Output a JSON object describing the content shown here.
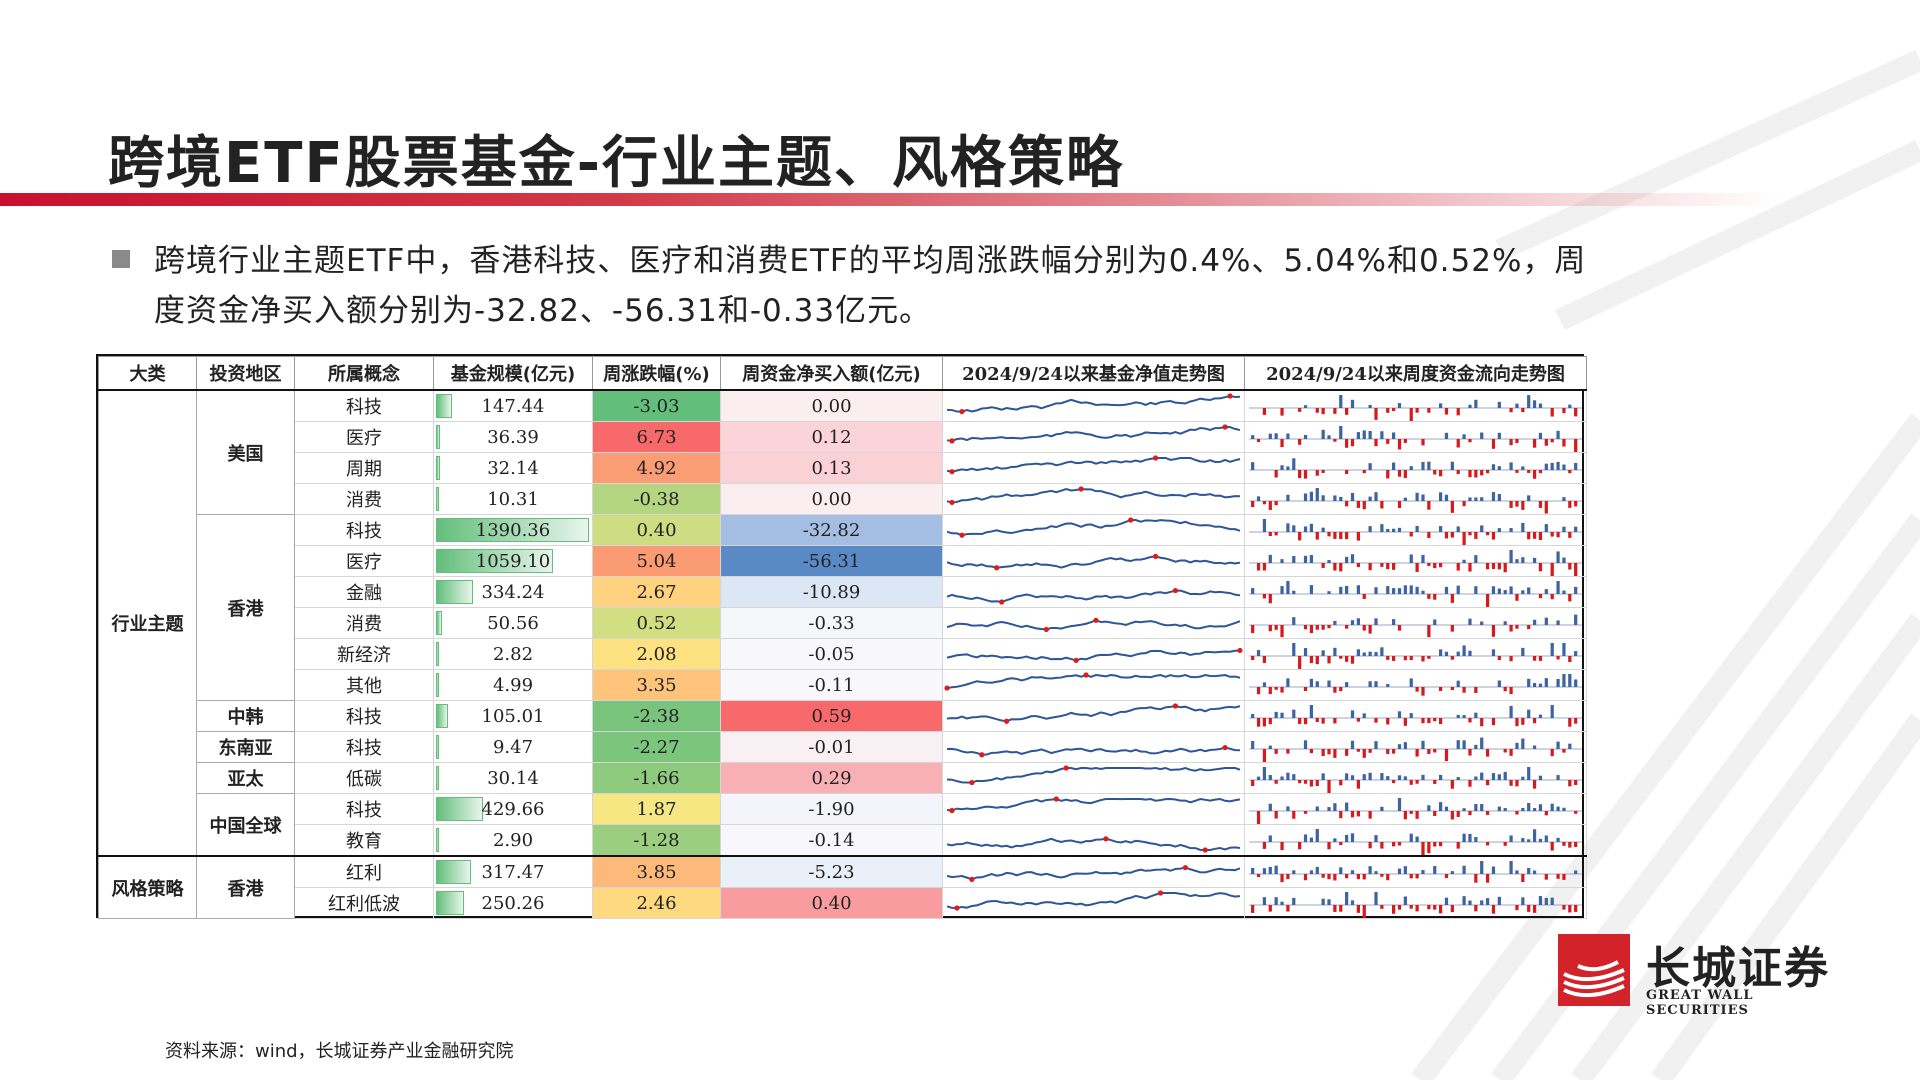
{
  "title": "跨境ETF股票基金-行业主题、风格策略",
  "bullet": "跨境行业主题ETF中，香港科技、医疗和消费ETF的平均周涨跌幅分别为0.4%、5.04%和0.52%，周度资金净买入额分别为-32.82、-56.31和-0.33亿元。",
  "table": {
    "headers": [
      "大类",
      "投资地区",
      "所属概念",
      "基金规模(亿元)",
      "周涨跌幅(%)",
      "周资金净买入额(亿元)",
      "2024/9/24以来基金净值走势图",
      "2024/9/24以来周度资金流向走势图"
    ],
    "groups": {
      "industry": "行业主题",
      "style": "风格策略",
      "us": "美国",
      "hk": "香港",
      "kr": "中韩",
      "sea": "东南亚",
      "ap": "亚太",
      "cn": "中国全球",
      "hk2": "香港"
    },
    "rows": [
      {
        "concept": "科技",
        "size": "147.44",
        "size_num": 147.44,
        "chg": "-3.03",
        "chg_bg": "#63be7b",
        "flow": "0.00",
        "flow_bg": "#fbeef0"
      },
      {
        "concept": "医疗",
        "size": "36.39",
        "size_num": 36.39,
        "chg": "6.73",
        "chg_bg": "#f8696b",
        "flow": "0.12",
        "flow_bg": "#fad4d8"
      },
      {
        "concept": "周期",
        "size": "32.14",
        "size_num": 32.14,
        "chg": "4.92",
        "chg_bg": "#fa9d75",
        "flow": "0.13",
        "flow_bg": "#fad2d6"
      },
      {
        "concept": "消费",
        "size": "10.31",
        "size_num": 10.31,
        "chg": "-0.38",
        "chg_bg": "#b5d680",
        "flow": "0.00",
        "flow_bg": "#fbeef0"
      },
      {
        "concept": "科技",
        "size": "1390.36",
        "size_num": 1390.36,
        "chg": "0.40",
        "chg_bg": "#cfdd82",
        "flow": "-32.82",
        "flow_bg": "#a4bde2"
      },
      {
        "concept": "医疗",
        "size": "1059.10",
        "size_num": 1059.1,
        "chg": "5.04",
        "chg_bg": "#fa9b74",
        "flow": "-56.31",
        "flow_bg": "#5a8ac6"
      },
      {
        "concept": "金融",
        "size": "334.24",
        "size_num": 334.24,
        "chg": "2.67",
        "chg_bg": "#fed27f",
        "flow": "-10.89",
        "flow_bg": "#dde6f4"
      },
      {
        "concept": "消费",
        "size": "50.56",
        "size_num": 50.56,
        "chg": "0.52",
        "chg_bg": "#d2de82",
        "flow": "-0.33",
        "flow_bg": "#f6f7fb"
      },
      {
        "concept": "新经济",
        "size": "2.82",
        "size_num": 2.82,
        "chg": "2.08",
        "chg_bg": "#fee282",
        "flow": "-0.05",
        "flow_bg": "#f8f8fc"
      },
      {
        "concept": "其他",
        "size": "4.99",
        "size_num": 4.99,
        "chg": "3.35",
        "chg_bg": "#fec47c",
        "flow": "-0.11",
        "flow_bg": "#f8f8fc"
      },
      {
        "concept": "科技",
        "size": "105.01",
        "size_num": 105.01,
        "chg": "-2.38",
        "chg_bg": "#78c47d",
        "flow": "0.59",
        "flow_bg": "#f8696b"
      },
      {
        "concept": "科技",
        "size": "9.47",
        "size_num": 9.47,
        "chg": "-2.27",
        "chg_bg": "#7bc57d",
        "flow": "-0.01",
        "flow_bg": "#f9f0f3"
      },
      {
        "concept": "低碳",
        "size": "30.14",
        "size_num": 30.14,
        "chg": "-1.66",
        "chg_bg": "#8ecb7e",
        "flow": "0.29",
        "flow_bg": "#f9b0b4"
      },
      {
        "concept": "科技",
        "size": "429.66",
        "size_num": 429.66,
        "chg": "1.87",
        "chg_bg": "#f6e783",
        "flow": "-1.90",
        "flow_bg": "#f4f5fa"
      },
      {
        "concept": "教育",
        "size": "2.90",
        "size_num": 2.9,
        "chg": "-1.28",
        "chg_bg": "#9bcf7f",
        "flow": "-0.14",
        "flow_bg": "#f8f8fc"
      },
      {
        "concept": "红利",
        "size": "317.47",
        "size_num": 317.47,
        "chg": "3.85",
        "chg_bg": "#fdb97a",
        "flow": "-5.23",
        "flow_bg": "#eaf0f8"
      },
      {
        "concept": "红利低波",
        "size": "250.26",
        "size_num": 250.26,
        "chg": "2.46",
        "chg_bg": "#fed980",
        "flow": "0.40",
        "flow_bg": "#f99ca0"
      }
    ]
  },
  "logo": {
    "cn": "长城证券",
    "en": "GREAT WALL SECURITIES"
  },
  "source": "资料来源：wind，长城证券产业金融研究院",
  "colors": {
    "accent": "#c8102e",
    "nav_line": "#2e5596",
    "flow_up": "#3d64a0",
    "flow_down": "#d7191c",
    "max_marker": "#e31a1c"
  }
}
